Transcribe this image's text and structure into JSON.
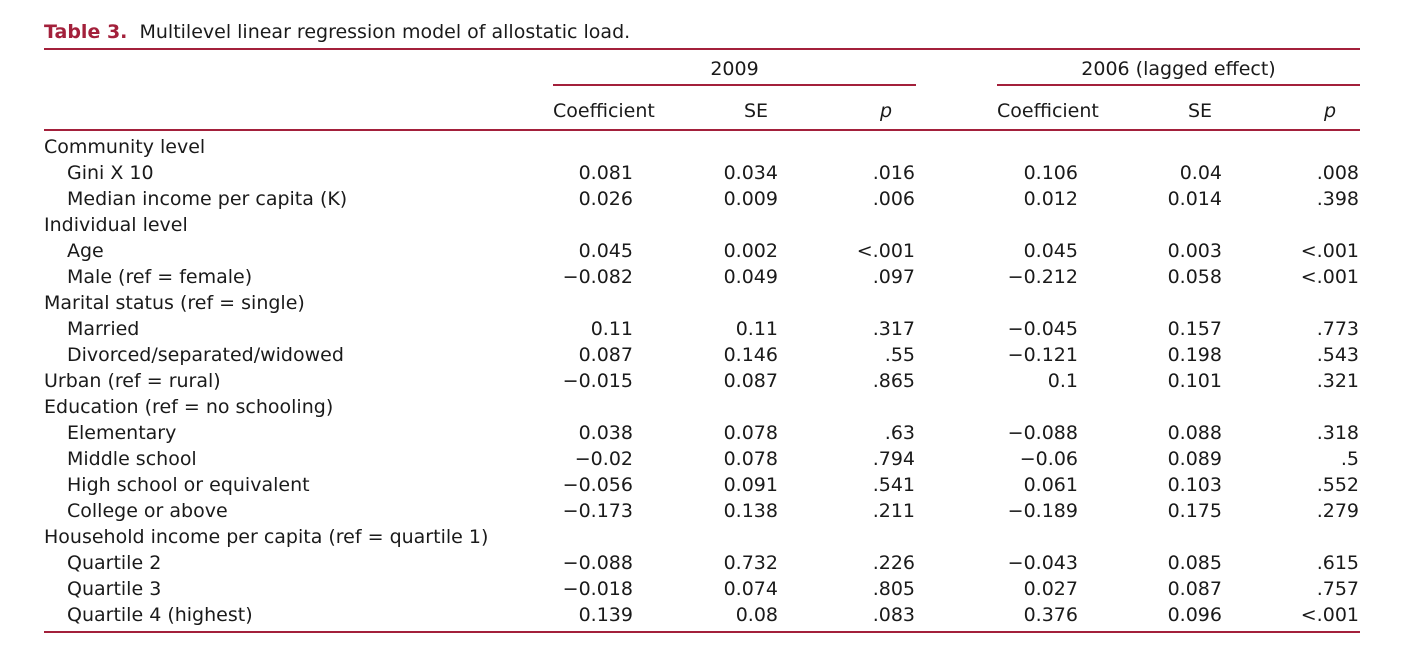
{
  "caption": {
    "label": "Table 3.",
    "text": "Multilevel linear regression model of allostatic load."
  },
  "groups": {
    "g2009": "2009",
    "g2006": "2006 (lagged effect)"
  },
  "columns": {
    "coef_2009": "Coefficient",
    "se_2009": "SE",
    "p_2009": "p",
    "coef_2006": "Coefficient",
    "se_2006": "SE",
    "p_2006": "p"
  },
  "rows": [
    {
      "label": "Community level",
      "indent": false,
      "coef09": "",
      "se09": "",
      "p09": "",
      "coef06": "",
      "se06": "",
      "p06": ""
    },
    {
      "label": "Gini X 10",
      "indent": true,
      "coef09": "0.081",
      "se09": "0.034",
      "p09": ".016",
      "coef06": "0.106",
      "se06": "0.04",
      "p06": ".008"
    },
    {
      "label": "Median income per capita (K)",
      "indent": true,
      "coef09": "0.026",
      "se09": "0.009",
      "p09": ".006",
      "coef06": "0.012",
      "se06": "0.014",
      "p06": ".398"
    },
    {
      "label": "Individual level",
      "indent": false,
      "coef09": "",
      "se09": "",
      "p09": "",
      "coef06": "",
      "se06": "",
      "p06": ""
    },
    {
      "label": "Age",
      "indent": true,
      "coef09": "0.045",
      "se09": "0.002",
      "p09": "<.001",
      "coef06": "0.045",
      "se06": "0.003",
      "p06": "<.001"
    },
    {
      "label": "Male (ref = female)",
      "indent": true,
      "coef09": "−0.082",
      "se09": "0.049",
      "p09": ".097",
      "coef06": "−0.212",
      "se06": "0.058",
      "p06": "<.001"
    },
    {
      "label": "Marital status (ref = single)",
      "indent": false,
      "coef09": "",
      "se09": "",
      "p09": "",
      "coef06": "",
      "se06": "",
      "p06": ""
    },
    {
      "label": "Married",
      "indent": true,
      "coef09": "0.11",
      "se09": "0.11",
      "p09": ".317",
      "coef06": "−0.045",
      "se06": "0.157",
      "p06": ".773"
    },
    {
      "label": "Divorced/separated/widowed",
      "indent": true,
      "coef09": "0.087",
      "se09": "0.146",
      "p09": ".55",
      "coef06": "−0.121",
      "se06": "0.198",
      "p06": ".543"
    },
    {
      "label": "Urban (ref = rural)",
      "indent": false,
      "coef09": "−0.015",
      "se09": "0.087",
      "p09": ".865",
      "coef06": "0.1",
      "se06": "0.101",
      "p06": ".321"
    },
    {
      "label": "Education (ref = no schooling)",
      "indent": false,
      "coef09": "",
      "se09": "",
      "p09": "",
      "coef06": "",
      "se06": "",
      "p06": ""
    },
    {
      "label": "Elementary",
      "indent": true,
      "coef09": "0.038",
      "se09": "0.078",
      "p09": ".63",
      "coef06": "−0.088",
      "se06": "0.088",
      "p06": ".318"
    },
    {
      "label": "Middle school",
      "indent": true,
      "coef09": "−0.02",
      "se09": "0.078",
      "p09": ".794",
      "coef06": "−0.06",
      "se06": "0.089",
      "p06": ".5"
    },
    {
      "label": "High school or equivalent",
      "indent": true,
      "coef09": "−0.056",
      "se09": "0.091",
      "p09": ".541",
      "coef06": "0.061",
      "se06": "0.103",
      "p06": ".552"
    },
    {
      "label": "College or above",
      "indent": true,
      "coef09": "−0.173",
      "se09": "0.138",
      "p09": ".211",
      "coef06": "−0.189",
      "se06": "0.175",
      "p06": ".279"
    },
    {
      "label": "Household income per capita (ref = quartile 1)",
      "indent": false,
      "coef09": "",
      "se09": "",
      "p09": "",
      "coef06": "",
      "se06": "",
      "p06": ""
    },
    {
      "label": "Quartile 2",
      "indent": true,
      "coef09": "−0.088",
      "se09": "0.732",
      "p09": ".226",
      "coef06": "−0.043",
      "se06": "0.085",
      "p06": ".615"
    },
    {
      "label": "Quartile 3",
      "indent": true,
      "coef09": "−0.018",
      "se09": "0.074",
      "p09": ".805",
      "coef06": "0.027",
      "se06": "0.087",
      "p06": ".757"
    },
    {
      "label": "Quartile 4 (highest)",
      "indent": true,
      "coef09": "0.139",
      "se09": "0.08",
      "p09": ".083",
      "coef06": "0.376",
      "se06": "0.096",
      "p06": "<.001"
    }
  ]
}
